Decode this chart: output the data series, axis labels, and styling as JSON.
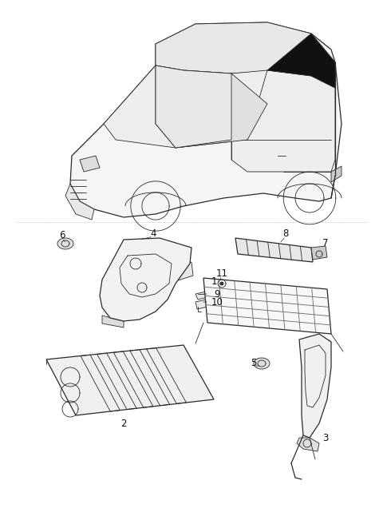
{
  "background_color": "#ffffff",
  "figsize": [
    4.8,
    6.56
  ],
  "dpi": 100,
  "line_color": "#2a2a2a",
  "light_gray": "#cccccc",
  "mid_gray": "#888888",
  "part_fill": "#f0f0f0",
  "dark_fill": "#111111"
}
